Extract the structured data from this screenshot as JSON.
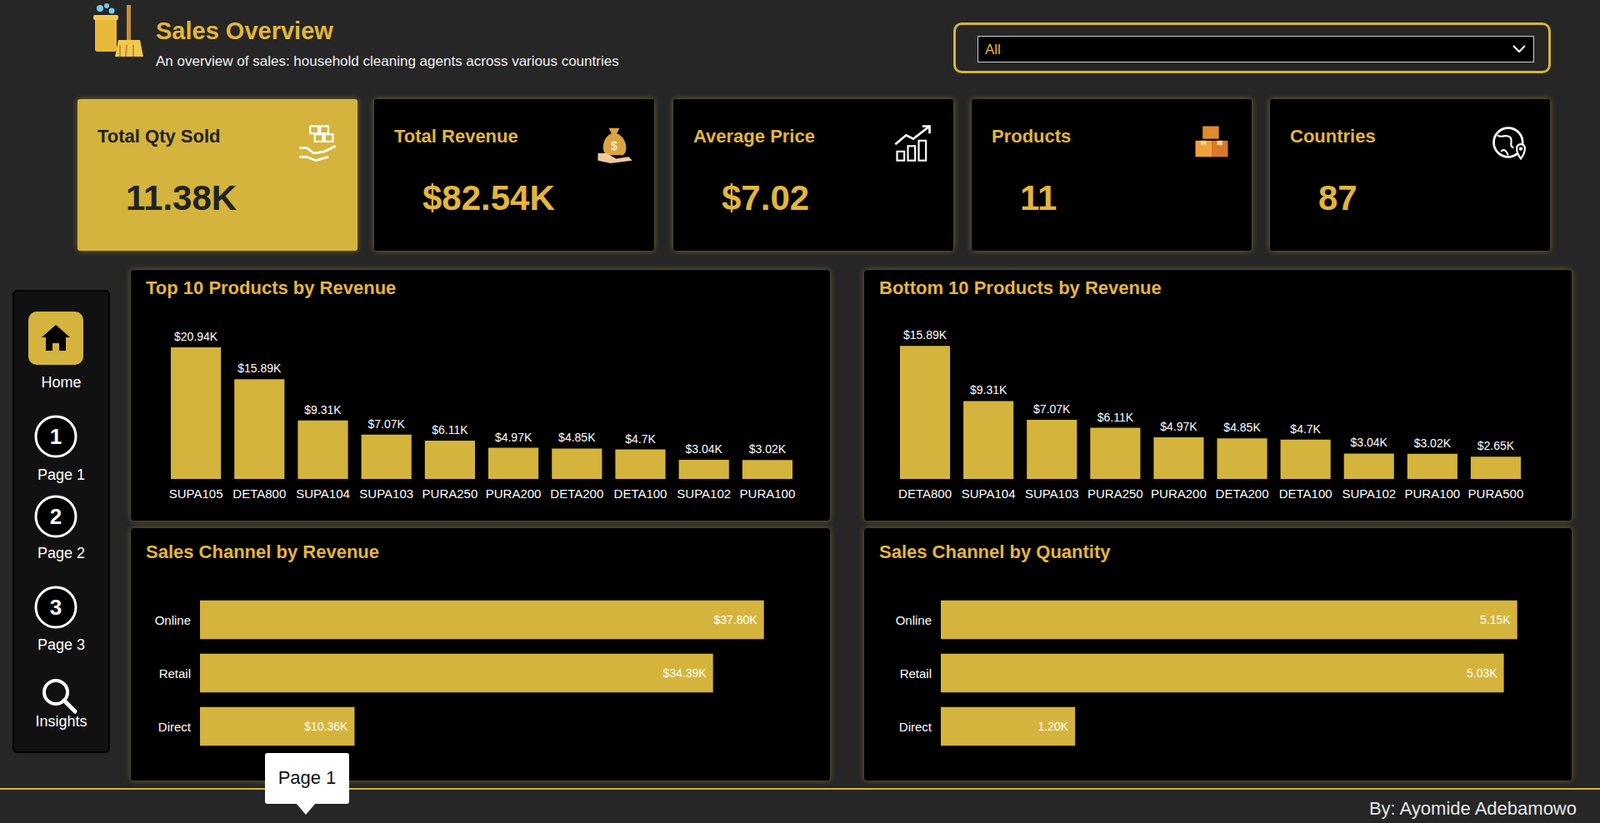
{
  "header": {
    "title": "Sales Overview",
    "subtitle": "An overview of sales: household cleaning agents across various countries"
  },
  "filter": {
    "value": "All"
  },
  "kpis": [
    {
      "label": "Total Qty Sold",
      "value": "11.38K"
    },
    {
      "label": "Total Revenue",
      "value": "$82.54K"
    },
    {
      "label": "Average Price",
      "value": "$7.02"
    },
    {
      "label": "Products",
      "value": "11"
    },
    {
      "label": "Countries",
      "value": "87"
    }
  ],
  "nav": [
    {
      "label": "Home"
    },
    {
      "badge": "1",
      "label": "Page 1"
    },
    {
      "badge": "2",
      "label": "Page 2"
    },
    {
      "badge": "3",
      "label": "Page 3"
    },
    {
      "label": "Insights"
    }
  ],
  "tooltip": "Page 1",
  "footer": "By: Ayomide Adebamowo",
  "chart_data": [
    {
      "type": "bar",
      "title": "Top 10 Products by Revenue",
      "categories": [
        "SUPA105",
        "DETA800",
        "SUPA104",
        "SUPA103",
        "PURA250",
        "PURA200",
        "DETA200",
        "DETA100",
        "SUPA102",
        "PURA100"
      ],
      "values": [
        20.94,
        15.89,
        9.31,
        7.07,
        6.11,
        4.97,
        4.85,
        4.7,
        3.04,
        3.02
      ],
      "value_labels": [
        "$20.94K",
        "$15.89K",
        "$9.31K",
        "$7.07K",
        "$6.11K",
        "$4.97K",
        "$4.85K",
        "$4.7K",
        "$3.04K",
        "$3.02K"
      ],
      "color": "#d4b43c",
      "ylim": [
        0,
        24
      ],
      "grid": false,
      "data_labels": true,
      "tick_labels": "x"
    },
    {
      "type": "bar",
      "title": "Bottom 10 Products by Revenue",
      "categories": [
        "DETA800",
        "SUPA104",
        "SUPA103",
        "PURA250",
        "PURA200",
        "DETA200",
        "DETA100",
        "SUPA102",
        "PURA100",
        "PURA500"
      ],
      "values": [
        15.89,
        9.31,
        7.07,
        6.11,
        4.97,
        4.85,
        4.7,
        3.04,
        3.02,
        2.65
      ],
      "value_labels": [
        "$15.89K",
        "$9.31K",
        "$7.07K",
        "$6.11K",
        "$4.97K",
        "$4.85K",
        "$4.7K",
        "$3.04K",
        "$3.02K",
        "$2.65K"
      ],
      "color": "#d4b43c",
      "ylim": [
        0,
        18
      ],
      "grid": false,
      "data_labels": true,
      "tick_labels": "x"
    },
    {
      "type": "bar",
      "orientation": "horizontal",
      "title": "Sales Channel by Revenue",
      "categories": [
        "Online",
        "Retail",
        "Direct"
      ],
      "values": [
        37.8,
        34.39,
        10.36
      ],
      "value_labels": [
        "$37.80K",
        "$34.39K",
        "$10.36K"
      ],
      "color": "#d4b43c",
      "xlim": [
        0,
        41
      ],
      "grid": false,
      "data_labels": true,
      "tick_labels": "y"
    },
    {
      "type": "bar",
      "orientation": "horizontal",
      "title": "Sales Channel by Quantity",
      "categories": [
        "Online",
        "Retail",
        "Direct"
      ],
      "values": [
        5.15,
        5.03,
        1.2
      ],
      "value_labels": [
        "5.15K",
        "5.03K",
        "1.20K"
      ],
      "color": "#d4b43c",
      "xlim": [
        0,
        5.45
      ],
      "grid": false,
      "data_labels": true,
      "tick_labels": "y"
    }
  ]
}
